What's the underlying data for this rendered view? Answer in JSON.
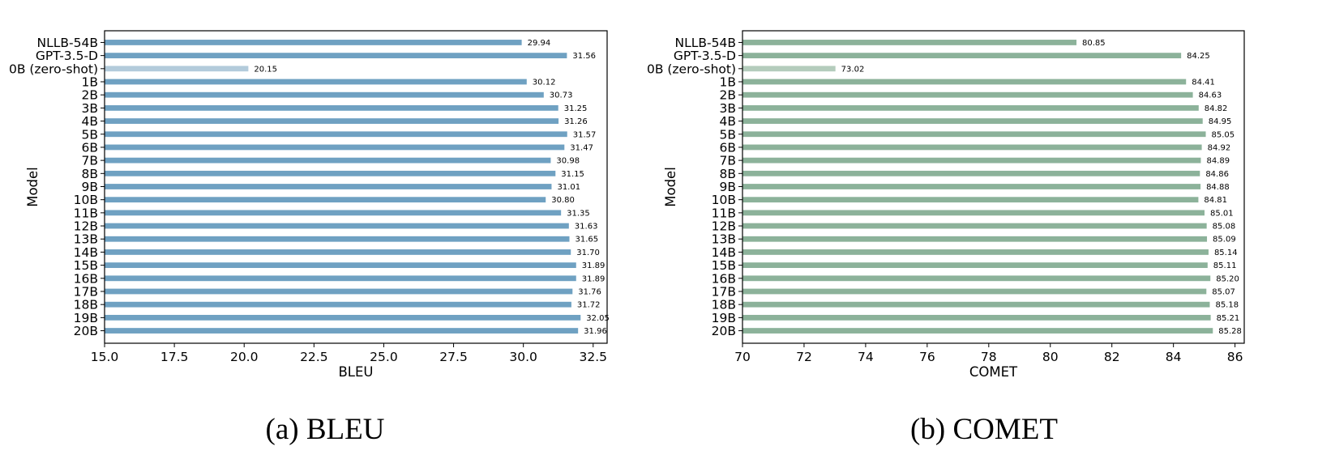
{
  "captions": {
    "left": "(a) BLEU",
    "right": "(b) COMET"
  },
  "chart_data": [
    {
      "type": "bar",
      "orientation": "horizontal",
      "title": "",
      "xlabel": "BLEU",
      "ylabel": "Model",
      "xlim": [
        15.0,
        33.0
      ],
      "xticks": [
        "15.0",
        "17.5",
        "20.0",
        "22.5",
        "25.0",
        "27.5",
        "30.0",
        "32.5"
      ],
      "tick_values": [
        15.0,
        17.5,
        20.0,
        22.5,
        25.0,
        27.5,
        30.0,
        32.5
      ],
      "color": "#6fa1c2",
      "highlight_color": "#b3cbdb",
      "highlight_category": "0B (zero-shot)",
      "categories": [
        "NLLB-54B",
        "GPT-3.5-D",
        "0B (zero-shot)",
        "1B",
        "2B",
        "3B",
        "4B",
        "5B",
        "6B",
        "7B",
        "8B",
        "9B",
        "10B",
        "11B",
        "12B",
        "13B",
        "14B",
        "15B",
        "16B",
        "17B",
        "18B",
        "19B",
        "20B"
      ],
      "values": [
        29.94,
        31.56,
        20.15,
        30.12,
        30.73,
        31.25,
        31.26,
        31.57,
        31.47,
        30.98,
        31.15,
        31.01,
        30.8,
        31.35,
        31.63,
        31.65,
        31.7,
        31.89,
        31.89,
        31.76,
        31.72,
        32.05,
        31.96
      ],
      "labels": [
        "29.94",
        "31.56",
        "20.15",
        "30.12",
        "30.73",
        "31.25",
        "31.26",
        "31.57",
        "31.47",
        "30.98",
        "31.15",
        "31.01",
        "30.80",
        "31.35",
        "31.63",
        "31.65",
        "31.70",
        "31.89",
        "31.89",
        "31.76",
        "31.72",
        "32.05",
        "31.96"
      ],
      "grid": false,
      "legend": "none"
    },
    {
      "type": "bar",
      "orientation": "horizontal",
      "title": "",
      "xlabel": "COMET",
      "ylabel": "Model",
      "xlim": [
        70,
        86.3
      ],
      "xticks": [
        "70",
        "72",
        "74",
        "76",
        "78",
        "80",
        "82",
        "84",
        "86"
      ],
      "tick_values": [
        70,
        72,
        74,
        76,
        78,
        80,
        82,
        84,
        86
      ],
      "color": "#8cb29a",
      "highlight_color": "#b4ccbc",
      "highlight_category": "0B (zero-shot)",
      "categories": [
        "NLLB-54B",
        "GPT-3.5-D",
        "0B (zero-shot)",
        "1B",
        "2B",
        "3B",
        "4B",
        "5B",
        "6B",
        "7B",
        "8B",
        "9B",
        "10B",
        "11B",
        "12B",
        "13B",
        "14B",
        "15B",
        "16B",
        "17B",
        "18B",
        "19B",
        "20B"
      ],
      "values": [
        80.85,
        84.25,
        73.02,
        84.41,
        84.63,
        84.82,
        84.95,
        85.05,
        84.92,
        84.89,
        84.86,
        84.88,
        84.81,
        85.01,
        85.08,
        85.09,
        85.14,
        85.11,
        85.2,
        85.07,
        85.18,
        85.21,
        85.28
      ],
      "labels": [
        "80.85",
        "84.25",
        "73.02",
        "84.41",
        "84.63",
        "84.82",
        "84.95",
        "85.05",
        "84.92",
        "84.89",
        "84.86",
        "84.88",
        "84.81",
        "85.01",
        "85.08",
        "85.09",
        "85.14",
        "85.11",
        "85.20",
        "85.07",
        "85.18",
        "85.21",
        "85.28"
      ],
      "grid": false,
      "legend": "none"
    }
  ]
}
